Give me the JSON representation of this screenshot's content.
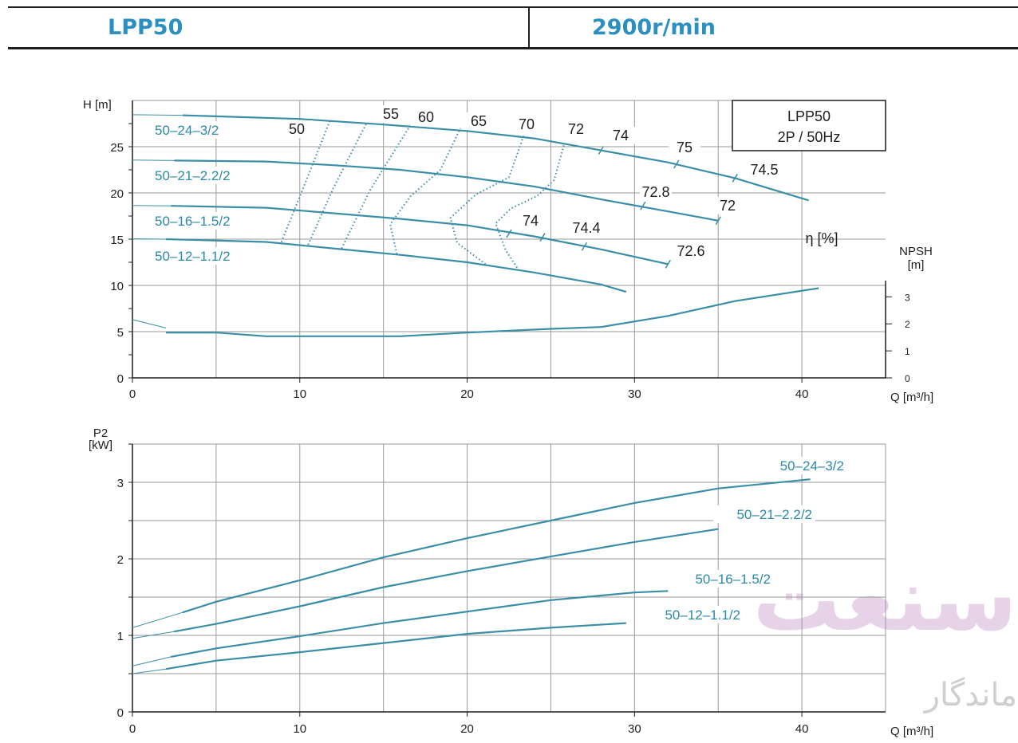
{
  "header": {
    "model": "LPP50",
    "speed": "2900r/min"
  },
  "colors": {
    "accent": "#2b8fc0",
    "curve": "#3a8ea6",
    "label": "#2b8aa6",
    "grid": "#9a9a9a",
    "text": "#1e1e1e",
    "watermark": "#e7d3e8"
  },
  "chart_data": [
    {
      "type": "line",
      "title": "",
      "info_box": [
        "LPP50",
        "2P / 50Hz"
      ],
      "xlabel": "Q [m³/h]",
      "ylabel": "H [m]",
      "y2label": "NPSH [m]",
      "eta_label": "η [%]",
      "xlim": [
        0,
        45
      ],
      "ylim": [
        0,
        30
      ],
      "y2lim": [
        0,
        3.6
      ],
      "x_ticks": [
        0,
        10,
        20,
        30,
        40
      ],
      "y_ticks": [
        0,
        5,
        10,
        15,
        20,
        25
      ],
      "y2_ticks": [
        0,
        1,
        2,
        3
      ],
      "grid": true,
      "series": [
        {
          "name": "50–24–3/2",
          "x": [
            3,
            10,
            15,
            20,
            24,
            28,
            32,
            36,
            40.4
          ],
          "y": [
            28.4,
            28.0,
            27.4,
            26.7,
            25.9,
            24.6,
            23.3,
            21.6,
            19.2
          ]
        },
        {
          "name": "50–21–2.2/2",
          "x": [
            2.5,
            8,
            12,
            16,
            20,
            24,
            28,
            32,
            35
          ],
          "y": [
            23.5,
            23.4,
            23.0,
            22.5,
            21.7,
            20.7,
            19.3,
            18.0,
            17.0
          ]
        },
        {
          "name": "50–16–1.5/2",
          "x": [
            2.3,
            8,
            12,
            16,
            20,
            24,
            28,
            32
          ],
          "y": [
            18.6,
            18.4,
            17.8,
            17.2,
            16.5,
            15.3,
            13.9,
            12.3
          ]
        },
        {
          "name": "50–12–1.1/2",
          "x": [
            2,
            8,
            12,
            16,
            20,
            24,
            28,
            29.5
          ],
          "y": [
            15.0,
            14.7,
            14.0,
            13.3,
            12.5,
            11.4,
            10.1,
            9.3
          ]
        }
      ],
      "npsh": {
        "x": [
          2,
          5,
          8,
          12,
          16,
          20,
          25,
          28,
          32,
          36,
          41
        ],
        "y": [
          0.6,
          0.6,
          0.56,
          0.56,
          0.56,
          0.6,
          0.64,
          0.66,
          0.78,
          0.94,
          1.08
        ]
      },
      "efficiency_labels": [
        "50",
        "55",
        "60",
        "65",
        "70",
        "72",
        "74",
        "75",
        "74.5",
        "72.8",
        "72",
        "74",
        "74.4",
        "72.6"
      ],
      "efficiency_contours": [
        {
          "x": [
            8.9,
            10.2,
            11.8
          ],
          "y": [
            14.7,
            20.5,
            27.8
          ]
        },
        {
          "x": [
            10.5,
            12,
            14
          ],
          "y": [
            14.4,
            20.5,
            27.6
          ]
        },
        {
          "x": [
            12.5,
            14.2,
            16.6
          ],
          "y": [
            14.0,
            20.3,
            27.3
          ]
        },
        {
          "x": [
            15.8,
            15.4,
            16.6,
            18.4,
            19.6
          ],
          "y": [
            13.4,
            16.6,
            19.6,
            22.5,
            27.0
          ]
        },
        {
          "x": [
            21.1,
            19.4,
            19.0,
            20.5,
            22.5,
            23.4
          ],
          "y": [
            12.3,
            14.6,
            17.3,
            19.8,
            21.7,
            26.3
          ]
        },
        {
          "x": [
            23.1,
            22.3,
            21.7,
            22.6,
            24.2,
            25.2,
            25.8
          ],
          "y": [
            11.6,
            13.8,
            16.7,
            18.3,
            19.7,
            21.4,
            25.3
          ]
        }
      ]
    },
    {
      "type": "line",
      "title": "",
      "xlabel": "Q [m³/h]",
      "ylabel": "P2 [kW]",
      "xlim": [
        0,
        45
      ],
      "ylim": [
        0,
        3.5
      ],
      "x_ticks": [
        0,
        10,
        20,
        30,
        40
      ],
      "y_ticks": [
        0,
        1,
        2,
        3
      ],
      "grid": true,
      "series": [
        {
          "name": "50–24–3/2",
          "x": [
            3,
            5,
            10,
            15,
            20,
            25,
            30,
            35,
            40.5
          ],
          "y": [
            1.3,
            1.44,
            1.72,
            2.02,
            2.27,
            2.5,
            2.73,
            2.92,
            3.04
          ]
        },
        {
          "name": "50–21–2.2/2",
          "x": [
            2.5,
            5,
            10,
            15,
            20,
            25,
            30,
            35
          ],
          "y": [
            1.05,
            1.15,
            1.38,
            1.63,
            1.84,
            2.03,
            2.22,
            2.39
          ]
        },
        {
          "name": "50–16–1.5/2",
          "x": [
            2.3,
            5,
            10,
            15,
            20,
            25,
            30,
            32
          ],
          "y": [
            0.72,
            0.83,
            0.99,
            1.16,
            1.31,
            1.46,
            1.56,
            1.58
          ]
        },
        {
          "name": "50–12–1.1/2",
          "x": [
            2,
            5,
            10,
            15,
            20,
            25,
            29.5
          ],
          "y": [
            0.56,
            0.67,
            0.78,
            0.9,
            1.02,
            1.1,
            1.16
          ]
        }
      ]
    }
  ],
  "watermark": {
    "latin": "سنعت",
    "sub": "ماندگار"
  }
}
